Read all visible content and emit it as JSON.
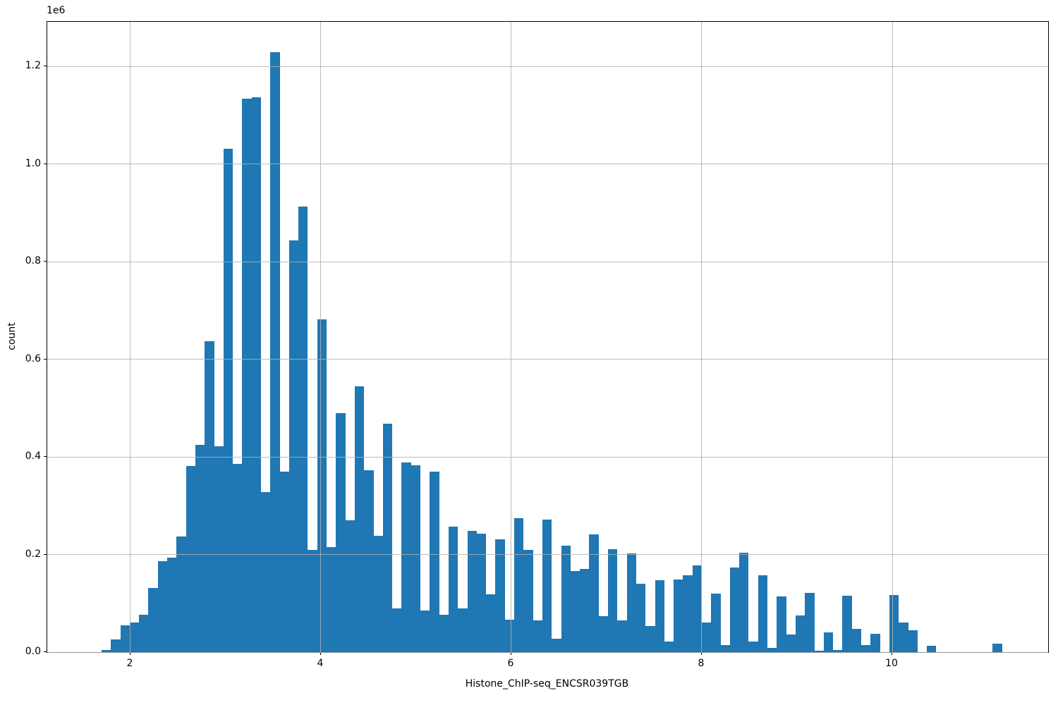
{
  "figure": {
    "background": "#ffffff",
    "spine_color": "#000000"
  },
  "chart_data": {
    "type": "bar",
    "subtype": "histogram",
    "title": "",
    "xlabel": "Histone_ChIP-seq_ENCSR039TGB",
    "ylabel": "count",
    "y_offset_text": "1e6",
    "bar_color": "#1f77b4",
    "grid": true,
    "grid_color": "#b0b0b0",
    "xlim": [
      1.126,
      11.637
    ],
    "ylim_e6": [
      0,
      1.291
    ],
    "x_tick_values": [
      2,
      4,
      6,
      8,
      10
    ],
    "x_tick_labels": [
      "2",
      "4",
      "6",
      "8",
      "10"
    ],
    "y_tick_values_e6": [
      0.0,
      0.2,
      0.4,
      0.6,
      0.8,
      1.0,
      1.2
    ],
    "y_tick_labels": [
      "0.0",
      "0.2",
      "0.4",
      "0.6",
      "0.8",
      "1.0",
      "1.2"
    ],
    "bin_start": 1.696,
    "bin_width": 0.0985,
    "counts_e6": [
      0.004,
      0.026,
      0.055,
      0.061,
      0.076,
      0.132,
      0.186,
      0.194,
      0.237,
      0.381,
      0.425,
      0.637,
      0.421,
      1.031,
      0.386,
      1.134,
      1.137,
      0.328,
      1.229,
      0.37,
      0.843,
      0.912,
      0.21,
      0.682,
      0.215,
      0.489,
      0.27,
      0.545,
      0.373,
      0.238,
      0.468,
      0.09,
      0.389,
      0.383,
      0.085,
      0.369,
      0.077,
      0.257,
      0.089,
      0.249,
      0.243,
      0.118,
      0.231,
      0.066,
      0.275,
      0.21,
      0.065,
      0.272,
      0.028,
      0.218,
      0.166,
      0.171,
      0.241,
      0.073,
      0.211,
      0.065,
      0.202,
      0.14,
      0.053,
      0.147,
      0.021,
      0.149,
      0.158,
      0.178,
      0.06,
      0.12,
      0.015,
      0.174,
      0.204,
      0.021,
      0.157,
      0.008,
      0.114,
      0.036,
      0.075,
      0.122,
      0.003,
      0.041,
      0.005,
      0.115,
      0.048,
      0.014,
      0.038,
      0.0,
      0.117,
      0.06,
      0.045,
      0.0,
      0.013,
      0.0,
      0.0,
      0.0,
      0.0,
      0.0,
      0.0,
      0.018
    ]
  }
}
